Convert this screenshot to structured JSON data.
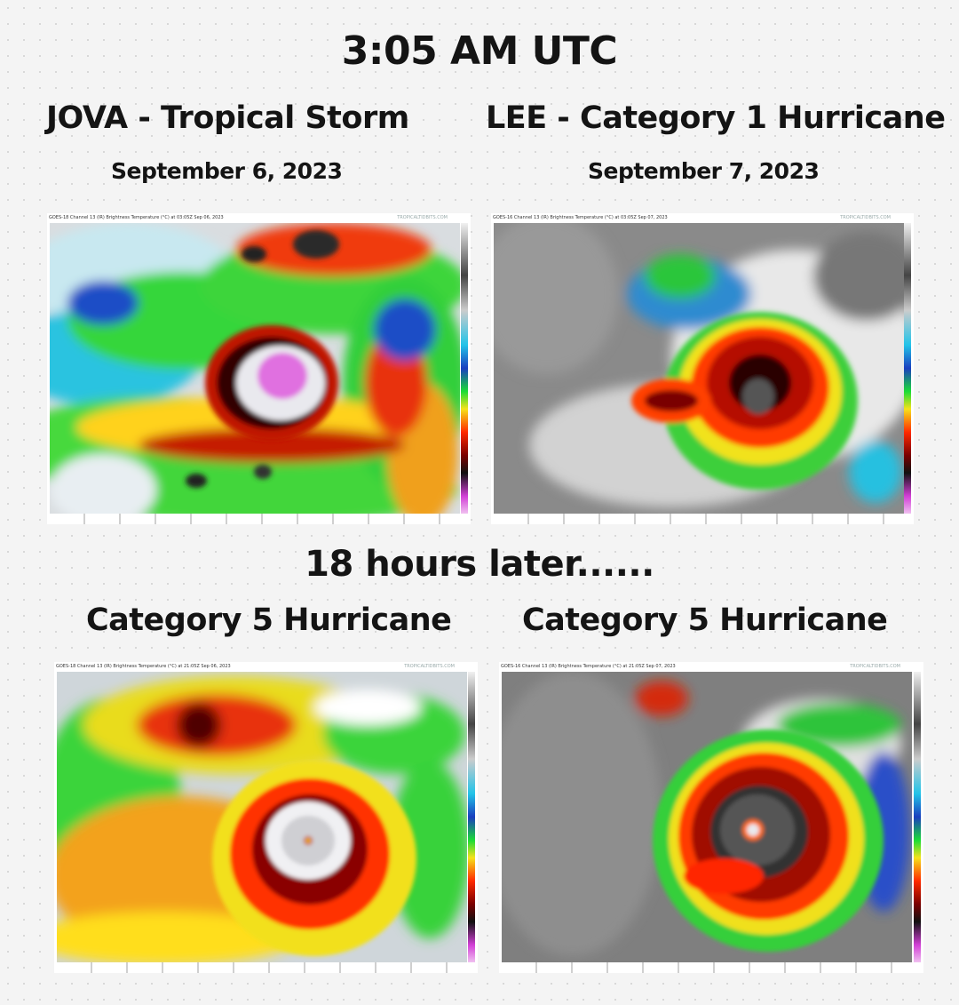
{
  "header": {
    "time": "3:05 AM UTC"
  },
  "storms": [
    {
      "name_status": "JOVA - Tropical Storm",
      "date": "September 6, 2023"
    },
    {
      "name_status": "LEE - Category 1 Hurricane",
      "date": "September 7, 2023"
    }
  ],
  "transition": "18 hours later......",
  "after": [
    {
      "status": "Category 5 Hurricane"
    },
    {
      "status": "Category 5 Hurricane"
    }
  ],
  "images": [
    {
      "caption": "GOES-18 Channel 13 (IR) Brightness Temperature (°C) at 03:05Z Sep 06, 2023",
      "source": "TROPICALTIDBITS.COM"
    },
    {
      "caption": "GOES-16 Channel 13 (IR) Brightness Temperature (°C) at 03:05Z Sep 07, 2023",
      "source": "TROPICALTIDBITS.COM"
    },
    {
      "caption": "GOES-18 Channel 13 (IR) Brightness Temperature (°C) at 21:05Z Sep 06, 2023",
      "source": "TROPICALTIDBITS.COM"
    },
    {
      "caption": "GOES-16 Channel 13 (IR) Brightness Temperature (°C) at 21:05Z Sep 07, 2023",
      "source": "TROPICALTIDBITS.COM"
    }
  ],
  "colors": {
    "background": "#f4f4f4",
    "text": "#141414",
    "ir_cold_top": "#e9e9ee",
    "ir_red": "#ff2a00",
    "ir_dark_red": "#7a0000",
    "ir_yellow": "#f5e21b",
    "ir_green": "#1bdc36",
    "ir_blue": "#1a3fbf",
    "ir_magenta": "#e070e0"
  }
}
